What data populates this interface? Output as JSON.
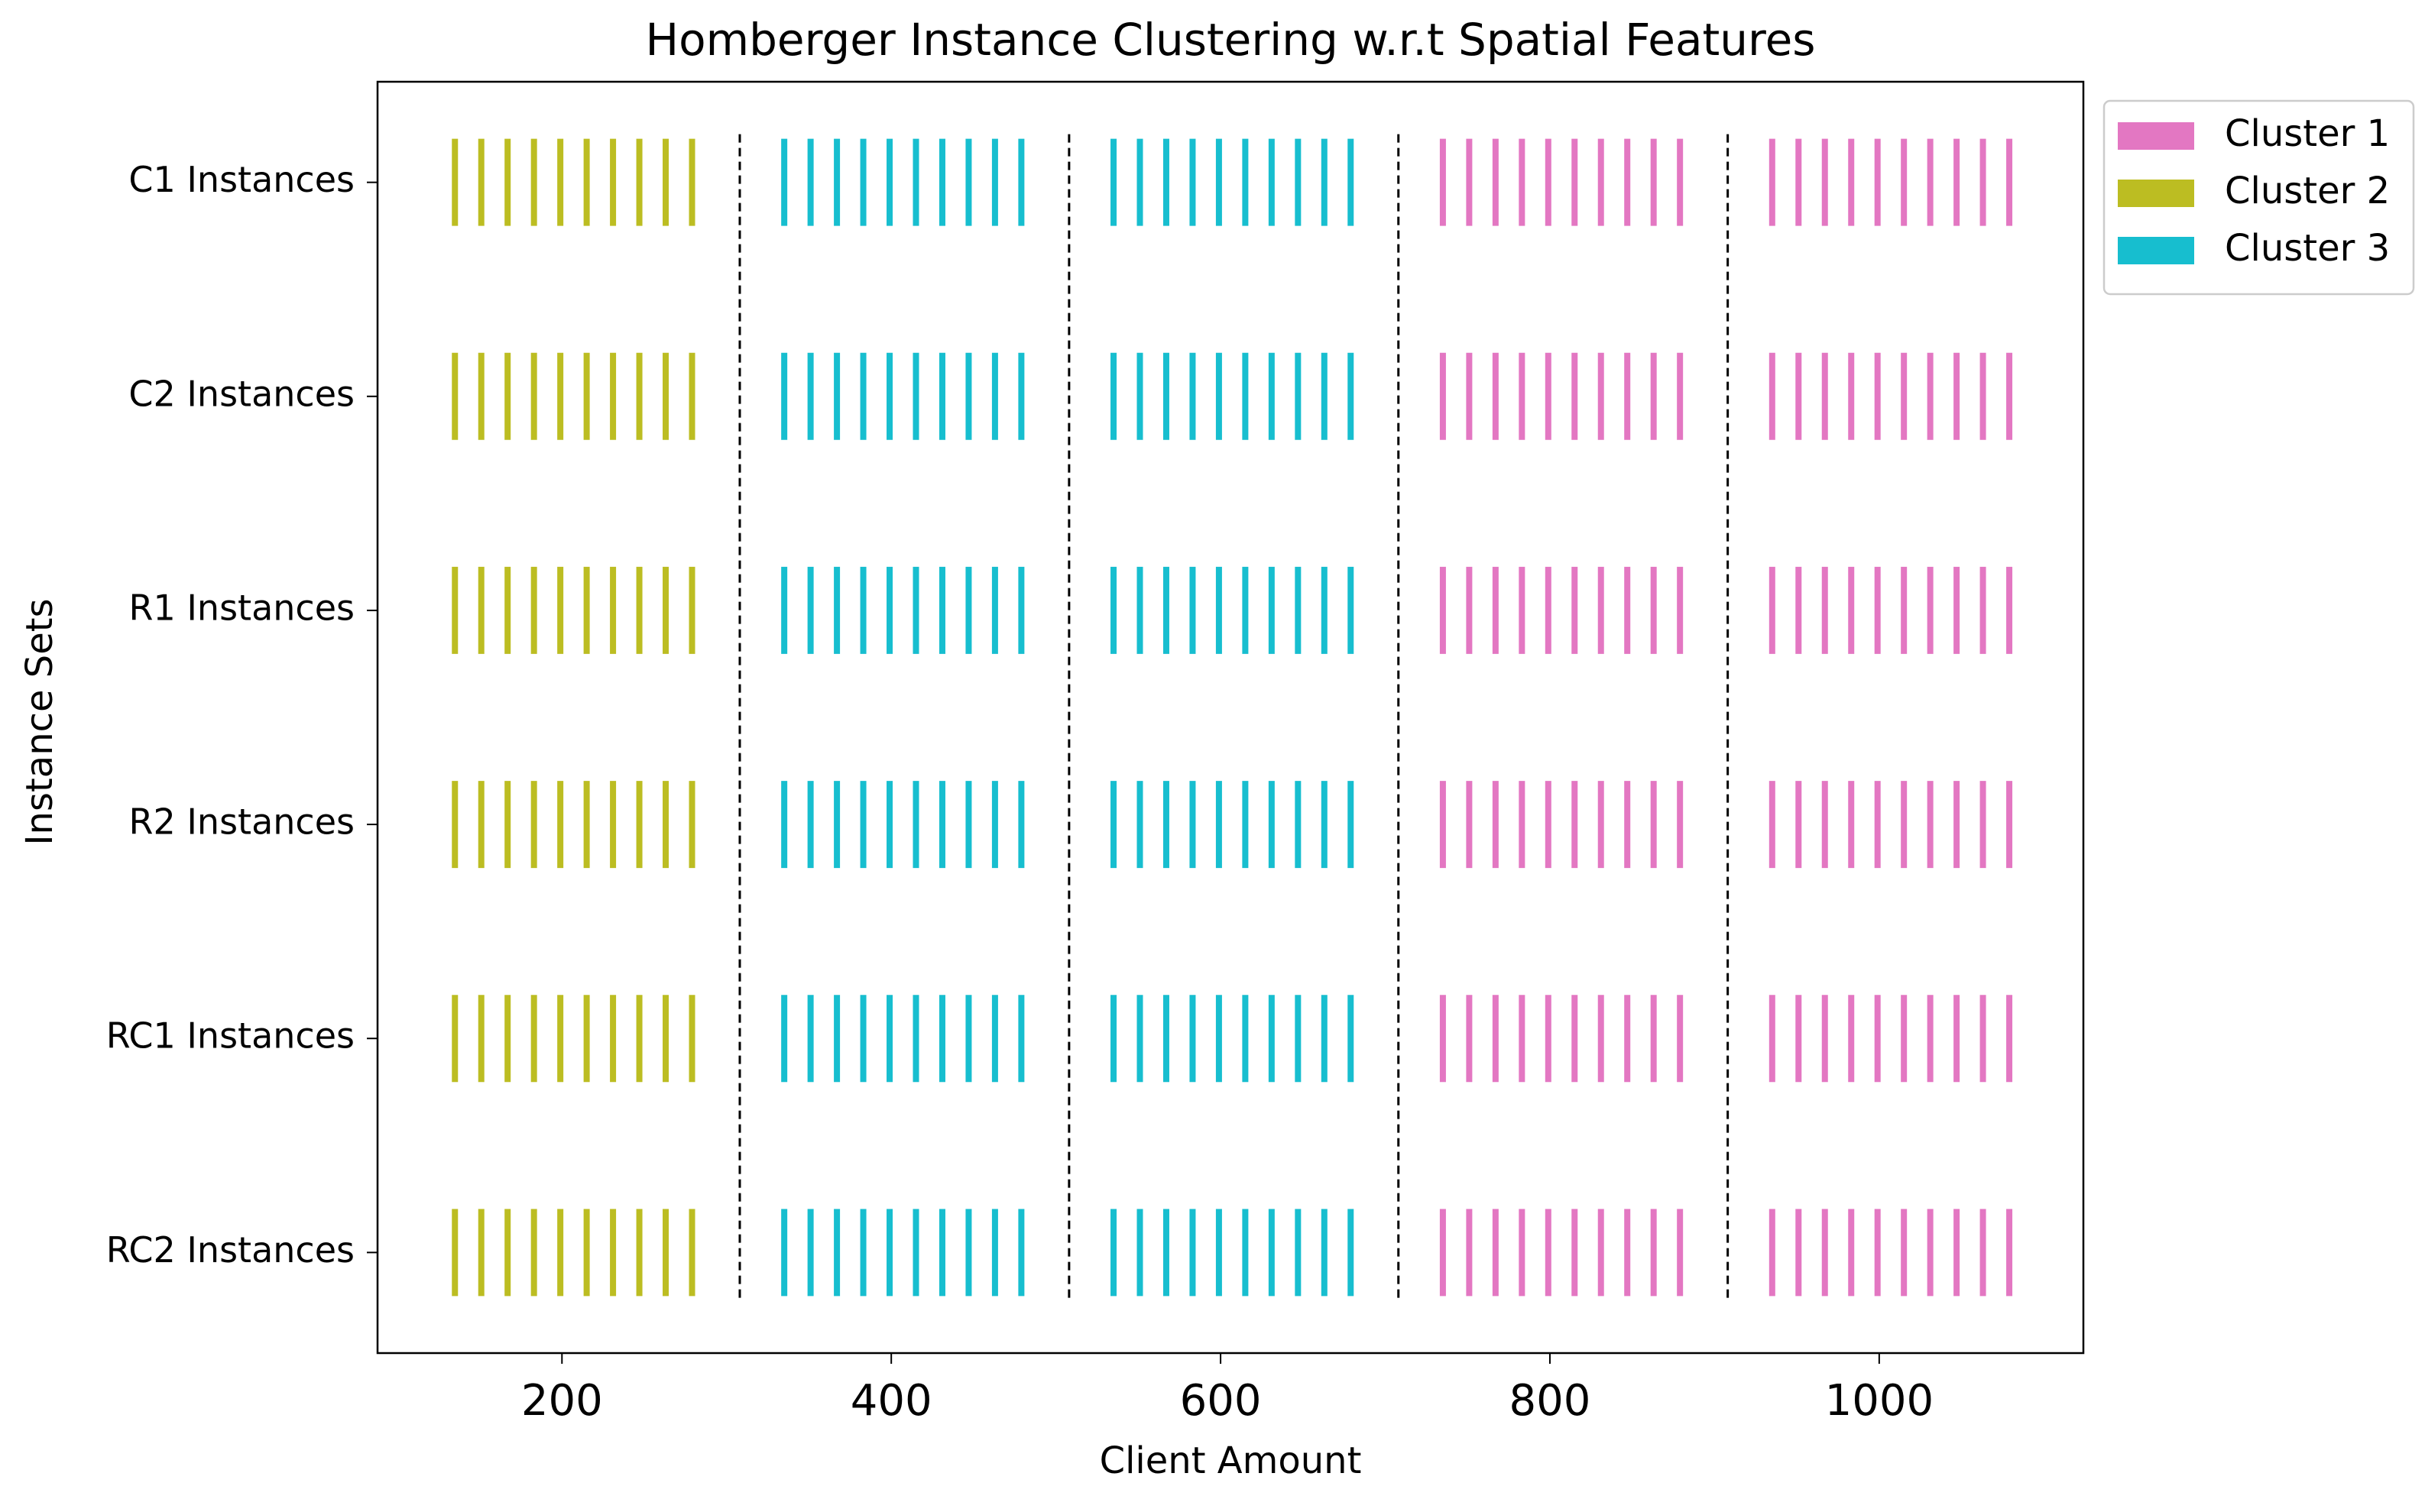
{
  "chart_data": {
    "type": "eventplot",
    "title": "Homberger Instance Clustering w.r.t Spatial Features",
    "xlabel": "Client Amount",
    "ylabel": "Instance Sets",
    "categories": [
      "C1 Instances",
      "C2 Instances",
      "R1 Instances",
      "R2 Instances",
      "RC1 Instances",
      "RC2 Instances"
    ],
    "series": [
      {
        "name": "Cluster 1",
        "color": "#e377c2",
        "x": [
          735,
          751,
          767,
          783,
          799,
          815,
          831,
          847,
          863,
          879,
          935,
          951,
          967,
          983,
          999,
          1015,
          1031,
          1047,
          1063,
          1079
        ]
      },
      {
        "name": "Cluster 2",
        "color": "#bcbd22",
        "x": [
          135,
          151,
          167,
          183,
          199,
          215,
          231,
          247,
          263,
          279
        ]
      },
      {
        "name": "Cluster 3",
        "color": "#17becf",
        "x": [
          335,
          351,
          367,
          383,
          399,
          415,
          431,
          447,
          463,
          479,
          535,
          551,
          567,
          583,
          599,
          615,
          631,
          647,
          663,
          679
        ]
      }
    ],
    "vlines": [
      308,
      508,
      708,
      908
    ],
    "xlim": [
      88,
      1124
    ],
    "xticks": [
      200,
      400,
      600,
      800,
      1000
    ],
    "legend": "outside upper right"
  }
}
